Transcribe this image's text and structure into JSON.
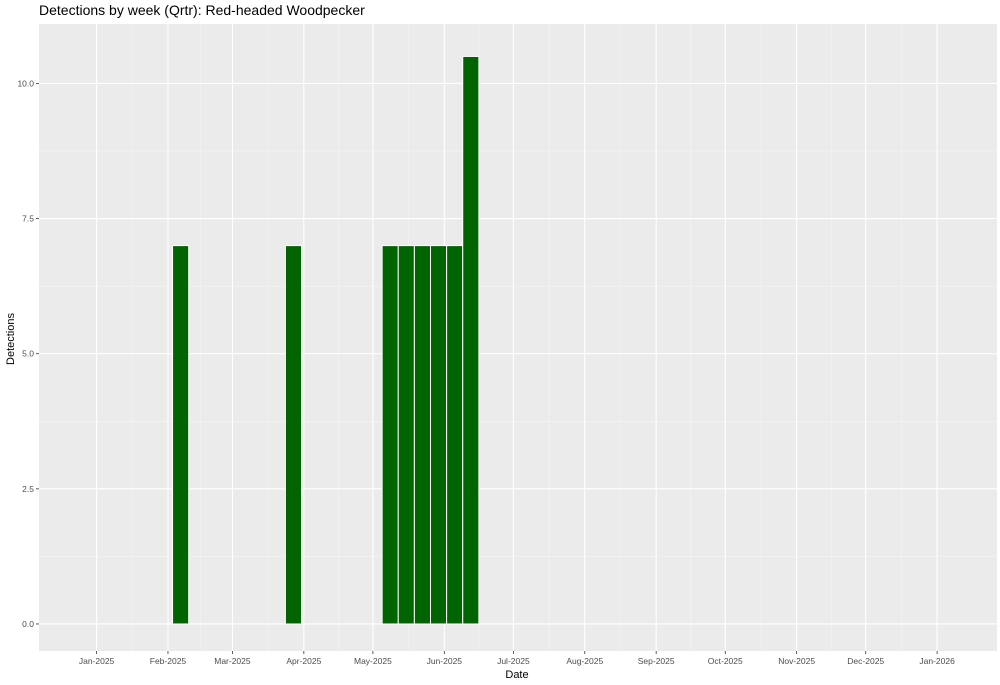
{
  "chart_data": {
    "type": "bar",
    "title": "Detections by week (Qrtr): Red-headed Woodpecker",
    "xlabel": "Date",
    "ylabel": "Detections",
    "x_axis": {
      "type": "date",
      "range": [
        "2024-12-07",
        "2026-01-27"
      ],
      "ticks": [
        {
          "date": "2025-01-01",
          "label": "Jan-2025"
        },
        {
          "date": "2025-02-01",
          "label": "Feb-2025"
        },
        {
          "date": "2025-03-01",
          "label": "Mar-2025"
        },
        {
          "date": "2025-04-01",
          "label": "Apr-2025"
        },
        {
          "date": "2025-05-01",
          "label": "May-2025"
        },
        {
          "date": "2025-06-01",
          "label": "Jun-2025"
        },
        {
          "date": "2025-07-01",
          "label": "Jul-2025"
        },
        {
          "date": "2025-08-01",
          "label": "Aug-2025"
        },
        {
          "date": "2025-09-01",
          "label": "Sep-2025"
        },
        {
          "date": "2025-10-01",
          "label": "Oct-2025"
        },
        {
          "date": "2025-11-01",
          "label": "Nov-2025"
        },
        {
          "date": "2025-12-01",
          "label": "Dec-2025"
        },
        {
          "date": "2026-01-01",
          "label": "Jan-2026"
        }
      ]
    },
    "y_axis": {
      "range": [
        -0.5,
        11.1
      ],
      "ticks": [
        {
          "value": 0,
          "label": "0.0"
        },
        {
          "value": 2.5,
          "label": "2.5"
        },
        {
          "value": 5,
          "label": "5.0"
        },
        {
          "value": 7.5,
          "label": "7.5"
        },
        {
          "value": 10,
          "label": "10.0"
        }
      ]
    },
    "grid": true,
    "bar_color": "#006400",
    "panel_background": "#ebebeb",
    "bars": [
      {
        "date": "2025-02-03",
        "value": 7
      },
      {
        "date": "2025-03-24",
        "value": 7
      },
      {
        "date": "2025-05-05",
        "value": 7
      },
      {
        "date": "2025-05-12",
        "value": 7
      },
      {
        "date": "2025-05-19",
        "value": 7
      },
      {
        "date": "2025-05-26",
        "value": 7
      },
      {
        "date": "2025-06-02",
        "value": 7
      },
      {
        "date": "2025-06-09",
        "value": 10.5
      }
    ]
  }
}
